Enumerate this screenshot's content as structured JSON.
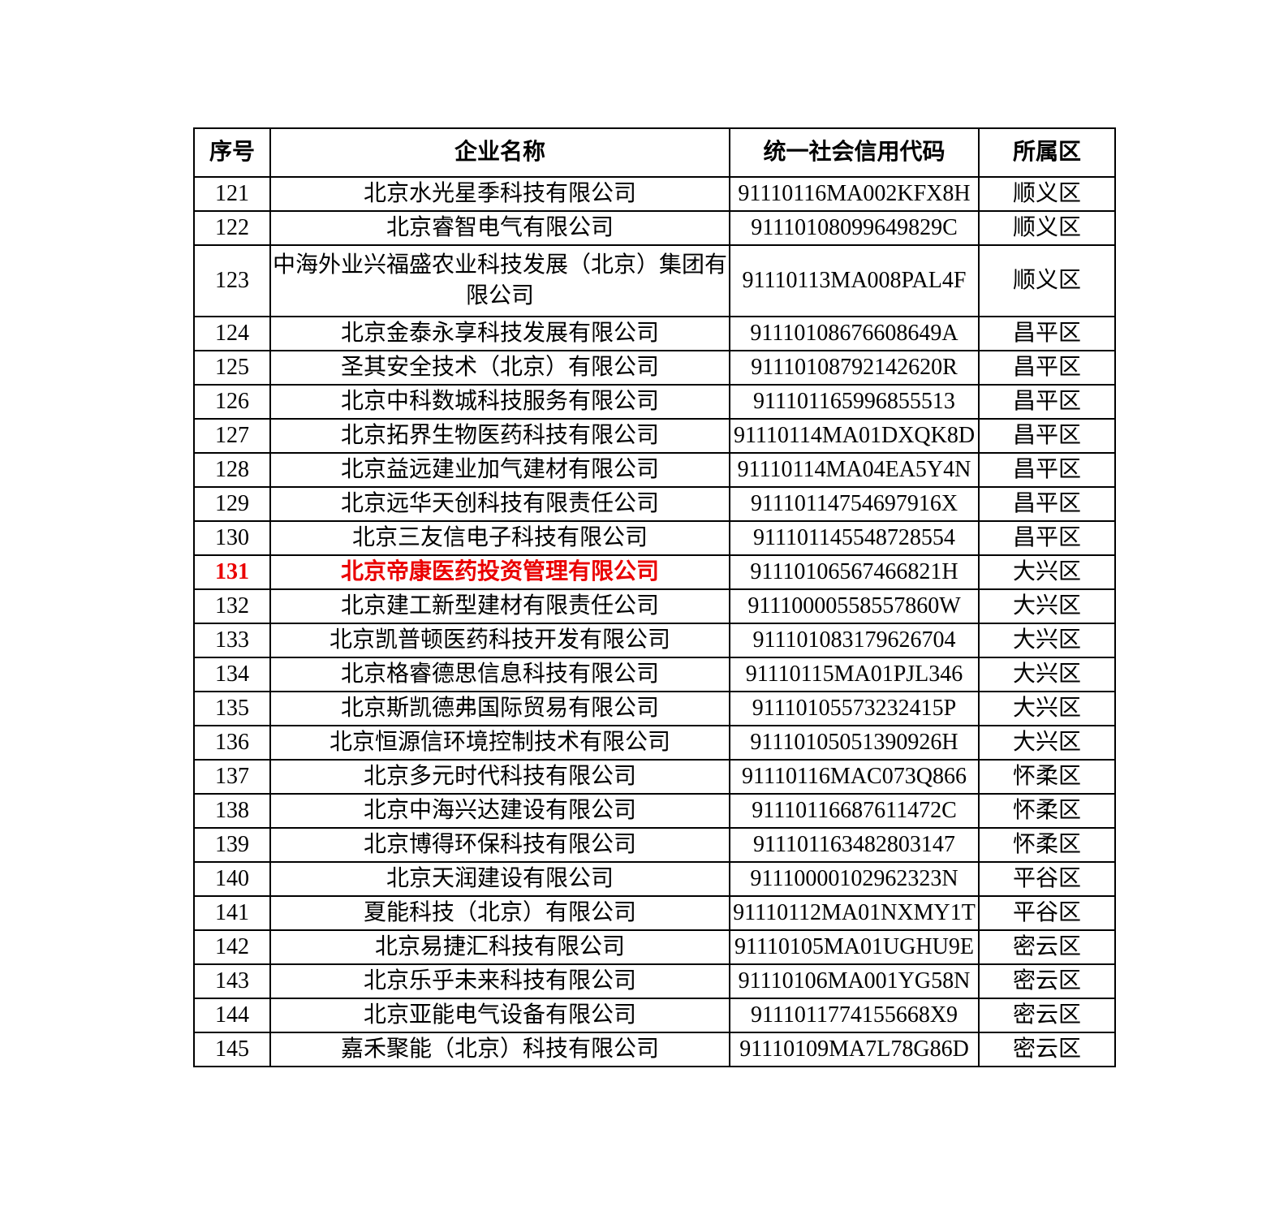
{
  "page": {
    "background": "#ffffff",
    "text_color": "#000000",
    "border_color": "#000000"
  },
  "table": {
    "highlight_color": "#ea0000",
    "headers": [
      "序号",
      "企业名称",
      "统一社会信用代码",
      "所属区"
    ],
    "rows": [
      {
        "no": "121",
        "name": "北京水光星季科技有限公司",
        "code": "91110116MA002KFX8H",
        "district": "顺义区"
      },
      {
        "no": "122",
        "name": "北京睿智电气有限公司",
        "code": "91110108099649829C",
        "district": "顺义区"
      },
      {
        "no": "123",
        "name": "中海外业兴福盛农业科技发展（北京）集团有限公司",
        "code": "91110113MA008PAL4F",
        "district": "顺义区"
      },
      {
        "no": "124",
        "name": "北京金泰永享科技发展有限公司",
        "code": "91110108676608649A",
        "district": "昌平区"
      },
      {
        "no": "125",
        "name": "圣其安全技术（北京）有限公司",
        "code": "91110108792142620R",
        "district": "昌平区"
      },
      {
        "no": "126",
        "name": "北京中科数城科技服务有限公司",
        "code": "911101165996855513",
        "district": "昌平区"
      },
      {
        "no": "127",
        "name": "北京拓界生物医药科技有限公司",
        "code": "91110114MA01DXQK8D",
        "district": "昌平区"
      },
      {
        "no": "128",
        "name": "北京益远建业加气建材有限公司",
        "code": "91110114MA04EA5Y4N",
        "district": "昌平区"
      },
      {
        "no": "129",
        "name": "北京远华天创科技有限责任公司",
        "code": "91110114754697916X",
        "district": "昌平区"
      },
      {
        "no": "130",
        "name": "北京三友信电子科技有限公司",
        "code": "911101145548728554",
        "district": "昌平区"
      },
      {
        "no": "131",
        "name": "北京帝康医药投资管理有限公司",
        "code": "91110106567466821H",
        "district": "大兴区",
        "highlight": true
      },
      {
        "no": "132",
        "name": "北京建工新型建材有限责任公司",
        "code": "91110000558557860W",
        "district": "大兴区"
      },
      {
        "no": "133",
        "name": "北京凯普顿医药科技开发有限公司",
        "code": "911101083179626704",
        "district": "大兴区"
      },
      {
        "no": "134",
        "name": "北京格睿德思信息科技有限公司",
        "code": "91110115MA01PJL346",
        "district": "大兴区"
      },
      {
        "no": "135",
        "name": "北京斯凯德弗国际贸易有限公司",
        "code": "91110105573232415P",
        "district": "大兴区"
      },
      {
        "no": "136",
        "name": "北京恒源信环境控制技术有限公司",
        "code": "91110105051390926H",
        "district": "大兴区"
      },
      {
        "no": "137",
        "name": "北京多元时代科技有限公司",
        "code": "91110116MAC073Q866",
        "district": "怀柔区"
      },
      {
        "no": "138",
        "name": "北京中海兴达建设有限公司",
        "code": "91110116687611472C",
        "district": "怀柔区"
      },
      {
        "no": "139",
        "name": "北京博得环保科技有限公司",
        "code": "911101163482803147",
        "district": "怀柔区"
      },
      {
        "no": "140",
        "name": "北京天润建设有限公司",
        "code": "91110000102962323N",
        "district": "平谷区"
      },
      {
        "no": "141",
        "name": "夏能科技（北京）有限公司",
        "code": "91110112MA01NXMY1T",
        "district": "平谷区"
      },
      {
        "no": "142",
        "name": "北京易捷汇科技有限公司",
        "code": "91110105MA01UGHU9E",
        "district": "密云区"
      },
      {
        "no": "143",
        "name": "北京乐乎未来科技有限公司",
        "code": "91110106MA001YG58N",
        "district": "密云区"
      },
      {
        "no": "144",
        "name": "北京亚能电气设备有限公司",
        "code": "9111011774155668X9",
        "district": "密云区"
      },
      {
        "no": "145",
        "name": "嘉禾聚能（北京）科技有限公司",
        "code": "91110109MA7L78G86D",
        "district": "密云区"
      }
    ]
  }
}
